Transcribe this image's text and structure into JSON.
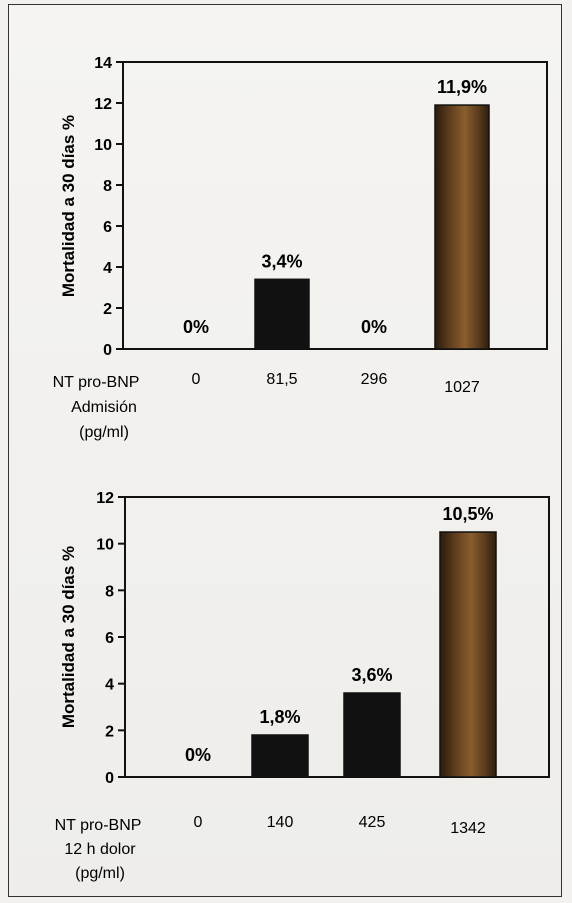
{
  "chart_data": [
    {
      "type": "bar",
      "ylabel": "Mortalidad a 30 días %",
      "xlabel_lines": [
        "NT pro-BNP",
        "Admisión",
        "(pg/ml)"
      ],
      "categories": [
        "0",
        "81,5",
        "296",
        "1027"
      ],
      "values": [
        0,
        3.4,
        0,
        11.9
      ],
      "data_labels": [
        "0%",
        "3,4%",
        "0%",
        "11,9%"
      ],
      "ylim": [
        0,
        14
      ],
      "yticks": [
        "0",
        "2",
        "4",
        "6",
        "8",
        "10",
        "12",
        "14"
      ],
      "colors": [
        "#111111",
        "#111111",
        "#111111",
        "#4a3118"
      ]
    },
    {
      "type": "bar",
      "ylabel": "Mortalidad a 30 días %",
      "xlabel_lines": [
        "NT pro-BNP",
        "12 h dolor",
        "(pg/ml)"
      ],
      "categories": [
        "0",
        "140",
        "425",
        "1342"
      ],
      "values": [
        0,
        1.8,
        3.6,
        10.5
      ],
      "data_labels": [
        "0%",
        "1,8%",
        "3,6%",
        "10,5%"
      ],
      "ylim": [
        0,
        12
      ],
      "yticks": [
        "0",
        "2",
        "4",
        "6",
        "8",
        "10",
        "12"
      ],
      "colors": [
        "#111111",
        "#111111",
        "#111111",
        "#4a3118"
      ]
    }
  ]
}
